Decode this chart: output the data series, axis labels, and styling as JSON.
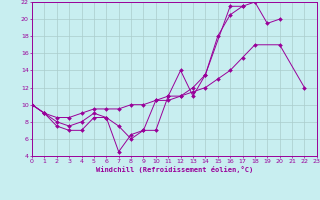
{
  "xlabel": "Windchill (Refroidissement éolien,°C)",
  "xlim": [
    0,
    23
  ],
  "ylim": [
    4,
    22
  ],
  "xticks": [
    0,
    1,
    2,
    3,
    4,
    5,
    6,
    7,
    8,
    9,
    10,
    11,
    12,
    13,
    14,
    15,
    16,
    17,
    18,
    19,
    20,
    21,
    22,
    23
  ],
  "yticks": [
    4,
    6,
    8,
    10,
    12,
    14,
    16,
    18,
    20,
    22
  ],
  "bg_color": "#c8eef0",
  "line_color": "#990099",
  "grid_color": "#aacccc",
  "line1_x": [
    0,
    1,
    2,
    3,
    4,
    5,
    6,
    7,
    8,
    9,
    10,
    11,
    12,
    13,
    14,
    15,
    16,
    17,
    18,
    19,
    20
  ],
  "line1_y": [
    10,
    9,
    7.5,
    7,
    7,
    8.5,
    8.5,
    7.5,
    6,
    7,
    7,
    11,
    14,
    11,
    13.5,
    18,
    20.5,
    21.5,
    22,
    19.5,
    20
  ],
  "line2_x": [
    0,
    1,
    2,
    3,
    4,
    5,
    6,
    7,
    8,
    9,
    10,
    11,
    12,
    13,
    14,
    16,
    17
  ],
  "line2_y": [
    10,
    9,
    8,
    7.5,
    8,
    9,
    8.5,
    4.5,
    6.5,
    7,
    10.5,
    11,
    11,
    12,
    13.5,
    21.5,
    21.5
  ],
  "line3_x": [
    0,
    1,
    2,
    3,
    4,
    5,
    6,
    7,
    8,
    9,
    10,
    11,
    12,
    13,
    14,
    15,
    16,
    17,
    18,
    20,
    22
  ],
  "line3_y": [
    10,
    9,
    8.5,
    8.5,
    9,
    9.5,
    9.5,
    9.5,
    10,
    10,
    10.5,
    10.5,
    11,
    11.5,
    12,
    13,
    14,
    15.5,
    17,
    17,
    12
  ]
}
